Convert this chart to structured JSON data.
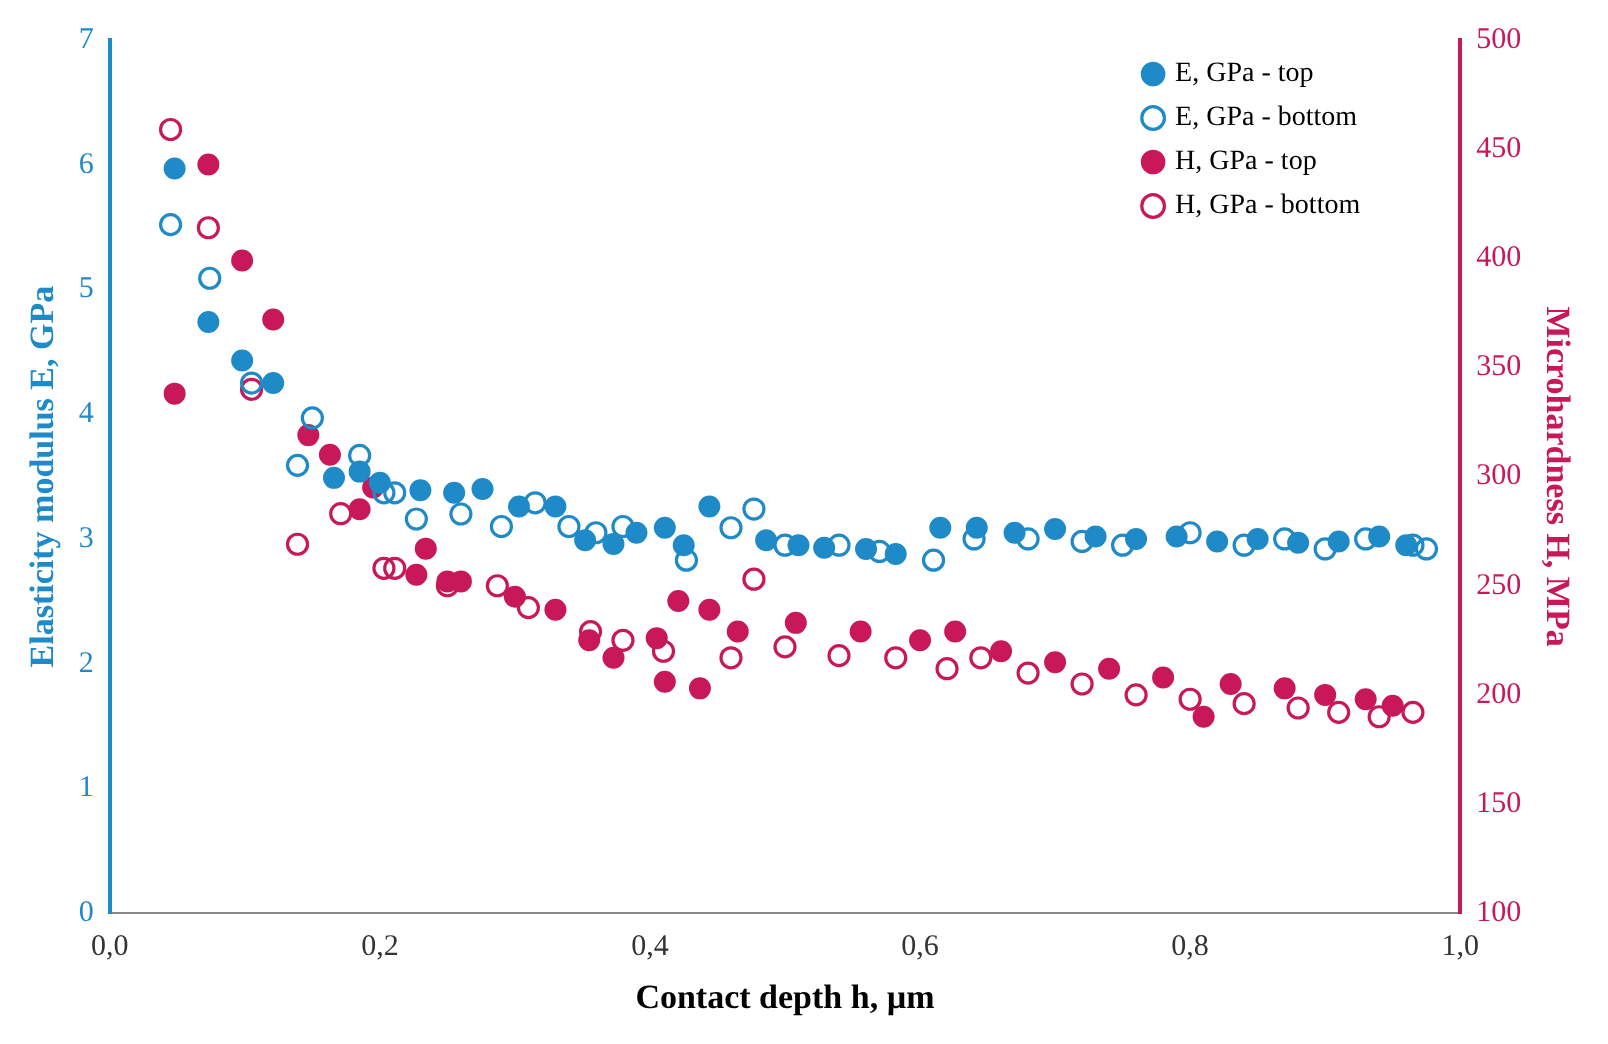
{
  "chart_data": {
    "type": "scatter",
    "xlabel": "Contact depth h, µm",
    "ylabel": "Elasticity modulus E, GPa",
    "y2label": "Microhardness H, MPa",
    "xlim": [
      0,
      1
    ],
    "xticks": [
      {
        "value": 0,
        "label": "0,0"
      },
      {
        "value": 0.2,
        "label": "0,2"
      },
      {
        "value": 0.4,
        "label": "0,4"
      },
      {
        "value": 0.6,
        "label": "0,6"
      },
      {
        "value": 0.8,
        "label": "0,8"
      },
      {
        "value": 1,
        "label": "1,0"
      }
    ],
    "ylim": [
      0,
      7
    ],
    "yticks": [
      0,
      1,
      2,
      3,
      4,
      5,
      6,
      7
    ],
    "y2lim": [
      100,
      500
    ],
    "y2ticks": [
      100,
      150,
      200,
      250,
      300,
      350,
      400,
      450,
      500
    ],
    "grid": false,
    "legend": "top right",
    "marker": "circle",
    "series": [
      {
        "name": "E, GPa - top",
        "color": "#1f8ac8",
        "x": [
          0.048,
          0.073,
          0.098,
          0.121,
          0.166,
          0.185,
          0.2,
          0.23,
          0.255,
          0.276,
          0.303,
          0.33,
          0.352,
          0.373,
          0.39,
          0.411,
          0.425,
          0.444,
          0.486,
          0.51,
          0.529,
          0.56,
          0.582,
          0.615,
          0.642,
          0.67,
          0.7,
          0.73,
          0.76,
          0.79,
          0.82,
          0.85,
          0.88,
          0.91,
          0.94,
          0.96
        ],
        "values": [
          5.97,
          4.74,
          4.43,
          4.25,
          3.49,
          3.54,
          3.45,
          3.39,
          3.37,
          3.4,
          3.26,
          3.26,
          2.99,
          2.96,
          3.05,
          3.09,
          2.95,
          3.26,
          2.99,
          2.95,
          2.93,
          2.92,
          2.88,
          3.09,
          3.09,
          3.05,
          3.08,
          3.02,
          3.0,
          3.02,
          2.98,
          3.0,
          2.97,
          2.98,
          3.02,
          2.95
        ]
      },
      {
        "name": "E, GPa - bottom",
        "color": "#1f8ac8",
        "x": [
          0.045,
          0.074,
          0.105,
          0.139,
          0.15,
          0.185,
          0.203,
          0.211,
          0.227,
          0.26,
          0.29,
          0.315,
          0.34,
          0.36,
          0.38,
          0.427,
          0.46,
          0.477,
          0.5,
          0.54,
          0.57,
          0.61,
          0.64,
          0.68,
          0.72,
          0.75,
          0.8,
          0.84,
          0.87,
          0.9,
          0.93,
          0.965,
          0.975
        ],
        "values": [
          5.52,
          5.09,
          4.25,
          3.59,
          3.97,
          3.67,
          3.37,
          3.37,
          3.16,
          3.2,
          3.1,
          3.29,
          3.1,
          3.05,
          3.1,
          2.83,
          3.09,
          3.24,
          2.95,
          2.95,
          2.9,
          2.83,
          3.0,
          3.0,
          2.98,
          2.95,
          3.05,
          2.95,
          3.0,
          2.92,
          3.0,
          2.95,
          2.92
        ]
      },
      {
        "name": "H, GPa - top",
        "color": "#c8185a",
        "axis": "y2",
        "x": [
          0.048,
          0.073,
          0.098,
          0.121,
          0.147,
          0.163,
          0.185,
          0.195,
          0.227,
          0.234,
          0.25,
          0.26,
          0.3,
          0.33,
          0.355,
          0.373,
          0.405,
          0.411,
          0.421,
          0.437,
          0.444,
          0.465,
          0.508,
          0.556,
          0.6,
          0.626,
          0.66,
          0.7,
          0.74,
          0.78,
          0.81,
          0.83,
          0.87,
          0.9,
          0.93,
          0.95
        ],
        "values": [
          338,
          443,
          399,
          372,
          319,
          310,
          285,
          295,
          255,
          267,
          252,
          252,
          245,
          239,
          225,
          217,
          226,
          206,
          243,
          203,
          239,
          229,
          233,
          229,
          225,
          229,
          220,
          215,
          212,
          208,
          190,
          205,
          203,
          200,
          198,
          195
        ]
      },
      {
        "name": "H, GPa - bottom",
        "color": "#c8185a",
        "axis": "y2",
        "x": [
          0.045,
          0.073,
          0.105,
          0.139,
          0.171,
          0.203,
          0.211,
          0.25,
          0.287,
          0.31,
          0.356,
          0.38,
          0.41,
          0.46,
          0.477,
          0.5,
          0.54,
          0.582,
          0.62,
          0.645,
          0.68,
          0.72,
          0.76,
          0.8,
          0.84,
          0.88,
          0.91,
          0.94,
          0.965
        ],
        "values": [
          459,
          414,
          340,
          269,
          283,
          258,
          258,
          250,
          250,
          240,
          229,
          225,
          220,
          217,
          253,
          222,
          218,
          217,
          212,
          217,
          210,
          205,
          200,
          198,
          196,
          194,
          192,
          190,
          192
        ]
      }
    ]
  }
}
